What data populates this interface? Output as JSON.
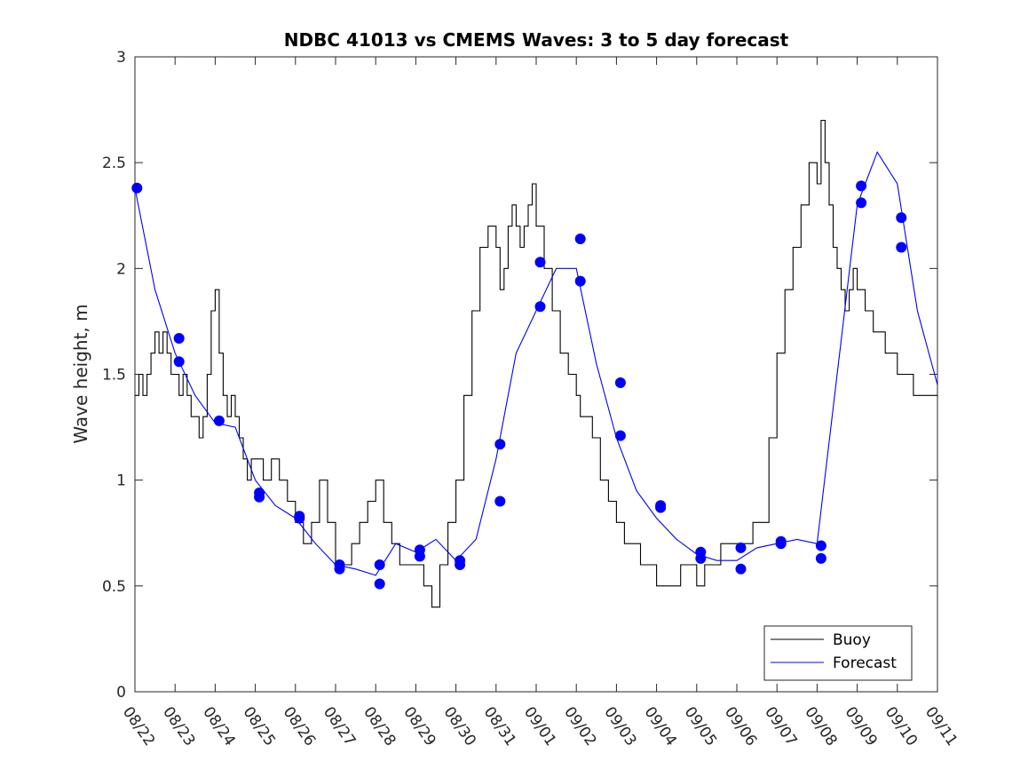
{
  "chart_data": {
    "type": "line",
    "title": "NDBC 41013 vs CMEMS Waves: 3 to 5 day forecast",
    "xlabel": "",
    "ylabel": "Wave height, m",
    "xlim": [
      0,
      20
    ],
    "ylim": [
      0,
      3
    ],
    "yticks": [
      0,
      0.5,
      1,
      1.5,
      2,
      2.5,
      3
    ],
    "ytick_labels": [
      "0",
      "0.5",
      "1",
      "1.5",
      "2",
      "2.5",
      "3"
    ],
    "xtick_labels": [
      "08/22",
      "08/23",
      "08/24",
      "08/25",
      "08/26",
      "08/27",
      "08/28",
      "08/29",
      "08/30",
      "08/31",
      "09/01",
      "09/02",
      "09/03",
      "09/04",
      "09/05",
      "09/06",
      "09/07",
      "09/08",
      "09/09",
      "09/10",
      "09/11"
    ],
    "x_units": "days since 08/22",
    "legend": {
      "location": "bottom-right",
      "entries": [
        "Buoy",
        "Forecast"
      ]
    },
    "colors": {
      "buoy": "#000000",
      "forecast": "#0000ff",
      "axes": "#262626"
    },
    "series": [
      {
        "name": "Buoy",
        "color": "#000000",
        "step": true,
        "x": [
          0.0,
          0.1,
          0.2,
          0.3,
          0.4,
          0.5,
          0.6,
          0.7,
          0.8,
          0.9,
          1.0,
          1.1,
          1.2,
          1.3,
          1.4,
          1.5,
          1.6,
          1.7,
          1.8,
          1.9,
          2.0,
          2.1,
          2.2,
          2.3,
          2.4,
          2.5,
          2.6,
          2.7,
          2.8,
          2.9,
          3.0,
          3.2,
          3.4,
          3.6,
          3.8,
          4.0,
          4.2,
          4.4,
          4.6,
          4.8,
          5.0,
          5.2,
          5.4,
          5.6,
          5.8,
          6.0,
          6.2,
          6.4,
          6.6,
          6.8,
          7.0,
          7.2,
          7.4,
          7.6,
          7.8,
          8.0,
          8.2,
          8.4,
          8.6,
          8.8,
          9.0,
          9.1,
          9.2,
          9.3,
          9.4,
          9.5,
          9.6,
          9.7,
          9.8,
          9.9,
          10.0,
          10.2,
          10.4,
          10.6,
          10.8,
          11.0,
          11.1,
          11.2,
          11.4,
          11.6,
          11.8,
          12.0,
          12.2,
          12.4,
          12.6,
          12.8,
          13.0,
          13.2,
          13.4,
          13.6,
          13.8,
          14.0,
          14.2,
          14.4,
          14.6,
          14.8,
          15.0,
          15.2,
          15.4,
          15.6,
          15.8,
          16.0,
          16.2,
          16.4,
          16.6,
          16.8,
          17.0,
          17.1,
          17.2,
          17.3,
          17.4,
          17.5,
          17.6,
          17.7,
          17.8,
          17.9,
          18.0,
          18.2,
          18.4,
          18.6,
          18.7,
          18.8,
          19.0,
          19.2,
          19.4,
          19.6,
          19.8,
          20.0
        ],
        "y": [
          1.4,
          1.5,
          1.4,
          1.5,
          1.6,
          1.7,
          1.6,
          1.7,
          1.6,
          1.5,
          1.5,
          1.4,
          1.5,
          1.4,
          1.3,
          1.3,
          1.2,
          1.3,
          1.5,
          1.8,
          1.9,
          1.6,
          1.4,
          1.3,
          1.4,
          1.3,
          1.2,
          1.1,
          1.0,
          1.1,
          1.1,
          1.0,
          1.1,
          1.0,
          0.9,
          0.8,
          0.7,
          0.8,
          1.0,
          0.8,
          0.6,
          0.6,
          0.7,
          0.8,
          0.9,
          1.0,
          0.8,
          0.7,
          0.6,
          0.6,
          0.6,
          0.5,
          0.4,
          0.6,
          0.8,
          1.0,
          1.4,
          1.8,
          2.1,
          2.2,
          2.1,
          1.9,
          2.0,
          2.2,
          2.3,
          2.2,
          2.1,
          2.2,
          2.3,
          2.4,
          2.2,
          2.0,
          1.8,
          1.6,
          1.5,
          1.4,
          1.3,
          1.3,
          1.2,
          1.0,
          0.9,
          0.8,
          0.7,
          0.7,
          0.6,
          0.6,
          0.5,
          0.5,
          0.5,
          0.6,
          0.6,
          0.5,
          0.6,
          0.6,
          0.7,
          0.7,
          0.7,
          0.7,
          0.8,
          0.8,
          1.2,
          1.6,
          1.9,
          2.1,
          2.3,
          2.5,
          2.4,
          2.7,
          2.5,
          2.3,
          2.1,
          2.0,
          1.9,
          1.8,
          1.9,
          2.0,
          1.9,
          1.8,
          1.7,
          1.7,
          1.6,
          1.6,
          1.5,
          1.5,
          1.4,
          1.4,
          1.4,
          1.4
        ]
      },
      {
        "name": "Forecast",
        "color": "#0000ff",
        "x": [
          0.0,
          0.5,
          1.0,
          1.5,
          2.0,
          2.5,
          3.0,
          3.5,
          4.0,
          4.5,
          5.0,
          5.5,
          6.0,
          6.5,
          7.0,
          7.5,
          8.0,
          8.5,
          9.0,
          9.5,
          10.0,
          10.5,
          11.0,
          11.5,
          12.0,
          12.5,
          13.0,
          13.5,
          14.0,
          14.5,
          15.0,
          15.5,
          16.0,
          16.5,
          17.0,
          17.5,
          18.0,
          18.5,
          19.0,
          19.5,
          20.0
        ],
        "y": [
          2.38,
          1.9,
          1.6,
          1.4,
          1.27,
          1.25,
          1.0,
          0.88,
          0.82,
          0.7,
          0.6,
          0.58,
          0.55,
          0.7,
          0.66,
          0.72,
          0.62,
          0.72,
          1.1,
          1.6,
          1.8,
          2.0,
          2.0,
          1.55,
          1.2,
          0.95,
          0.82,
          0.72,
          0.65,
          0.62,
          0.62,
          0.68,
          0.7,
          0.72,
          0.7,
          1.5,
          2.3,
          2.55,
          2.4,
          1.8,
          1.45
        ]
      }
    ],
    "markers": [
      {
        "x": 0.05,
        "y": 2.38
      },
      {
        "x": 1.1,
        "y": 1.67
      },
      {
        "x": 1.1,
        "y": 1.56
      },
      {
        "x": 2.1,
        "y": 1.28
      },
      {
        "x": 3.1,
        "y": 0.94
      },
      {
        "x": 3.1,
        "y": 0.92
      },
      {
        "x": 4.1,
        "y": 0.83
      },
      {
        "x": 4.1,
        "y": 0.82
      },
      {
        "x": 5.1,
        "y": 0.6
      },
      {
        "x": 5.1,
        "y": 0.58
      },
      {
        "x": 6.1,
        "y": 0.6
      },
      {
        "x": 6.1,
        "y": 0.51
      },
      {
        "x": 7.1,
        "y": 0.67
      },
      {
        "x": 7.1,
        "y": 0.64
      },
      {
        "x": 8.1,
        "y": 0.62
      },
      {
        "x": 8.1,
        "y": 0.6
      },
      {
        "x": 9.1,
        "y": 1.17
      },
      {
        "x": 9.1,
        "y": 0.9
      },
      {
        "x": 10.1,
        "y": 2.03
      },
      {
        "x": 10.1,
        "y": 1.82
      },
      {
        "x": 11.1,
        "y": 2.14
      },
      {
        "x": 11.1,
        "y": 1.94
      },
      {
        "x": 12.1,
        "y": 1.46
      },
      {
        "x": 12.1,
        "y": 1.21
      },
      {
        "x": 13.1,
        "y": 0.88
      },
      {
        "x": 13.1,
        "y": 0.87
      },
      {
        "x": 14.1,
        "y": 0.66
      },
      {
        "x": 14.1,
        "y": 0.63
      },
      {
        "x": 15.1,
        "y": 0.68
      },
      {
        "x": 15.1,
        "y": 0.58
      },
      {
        "x": 16.1,
        "y": 0.71
      },
      {
        "x": 16.1,
        "y": 0.7
      },
      {
        "x": 17.1,
        "y": 0.69
      },
      {
        "x": 17.1,
        "y": 0.63
      },
      {
        "x": 18.1,
        "y": 2.39
      },
      {
        "x": 18.1,
        "y": 2.31
      },
      {
        "x": 19.1,
        "y": 2.24
      },
      {
        "x": 19.1,
        "y": 2.1
      }
    ]
  }
}
